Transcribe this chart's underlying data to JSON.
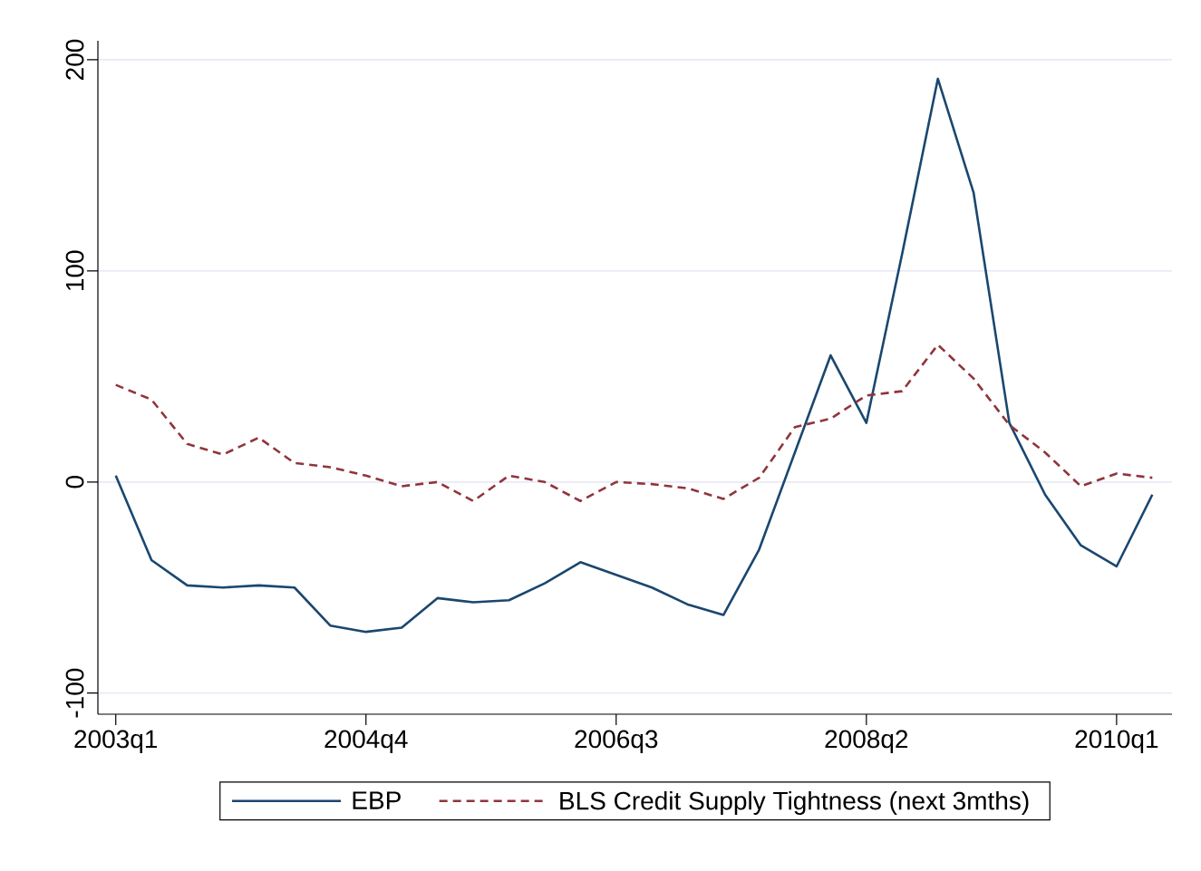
{
  "chart_data": {
    "type": "line",
    "categories": [
      "2003q1",
      null,
      null,
      null,
      null,
      null,
      null,
      "2004q4",
      null,
      null,
      null,
      null,
      null,
      null,
      "2006q3",
      null,
      null,
      null,
      null,
      null,
      null,
      "2008q2",
      null,
      null,
      null,
      null,
      null,
      null,
      "2010q1",
      null
    ],
    "series": [
      {
        "name": "EBP",
        "color": "#1a476f",
        "line_style": "solid",
        "values": [
          3,
          -37,
          -49,
          -50,
          -49,
          -50,
          -68,
          -71,
          -69,
          -55,
          -57,
          -56,
          -48,
          -38,
          -44,
          -50,
          -58,
          -63,
          -32,
          14,
          60,
          28,
          108,
          191,
          137,
          28,
          -6,
          -30,
          -40,
          -6
        ]
      },
      {
        "name": "BLS Credit Supply Tightness (next 3mths)",
        "color": "#90353b",
        "line_style": "dashed",
        "values": [
          46,
          39,
          18,
          13,
          21,
          9,
          7,
          3,
          -2,
          0,
          -9,
          3,
          0,
          -9,
          0,
          -1,
          -3,
          -8,
          2,
          26,
          30,
          41,
          43,
          65,
          49,
          27,
          14,
          -2,
          4,
          2
        ]
      }
    ],
    "ylim": [
      -110,
      209
    ],
    "yticks": [
      -100,
      0,
      100,
      200
    ],
    "grid": "y",
    "legend": "bottom"
  }
}
